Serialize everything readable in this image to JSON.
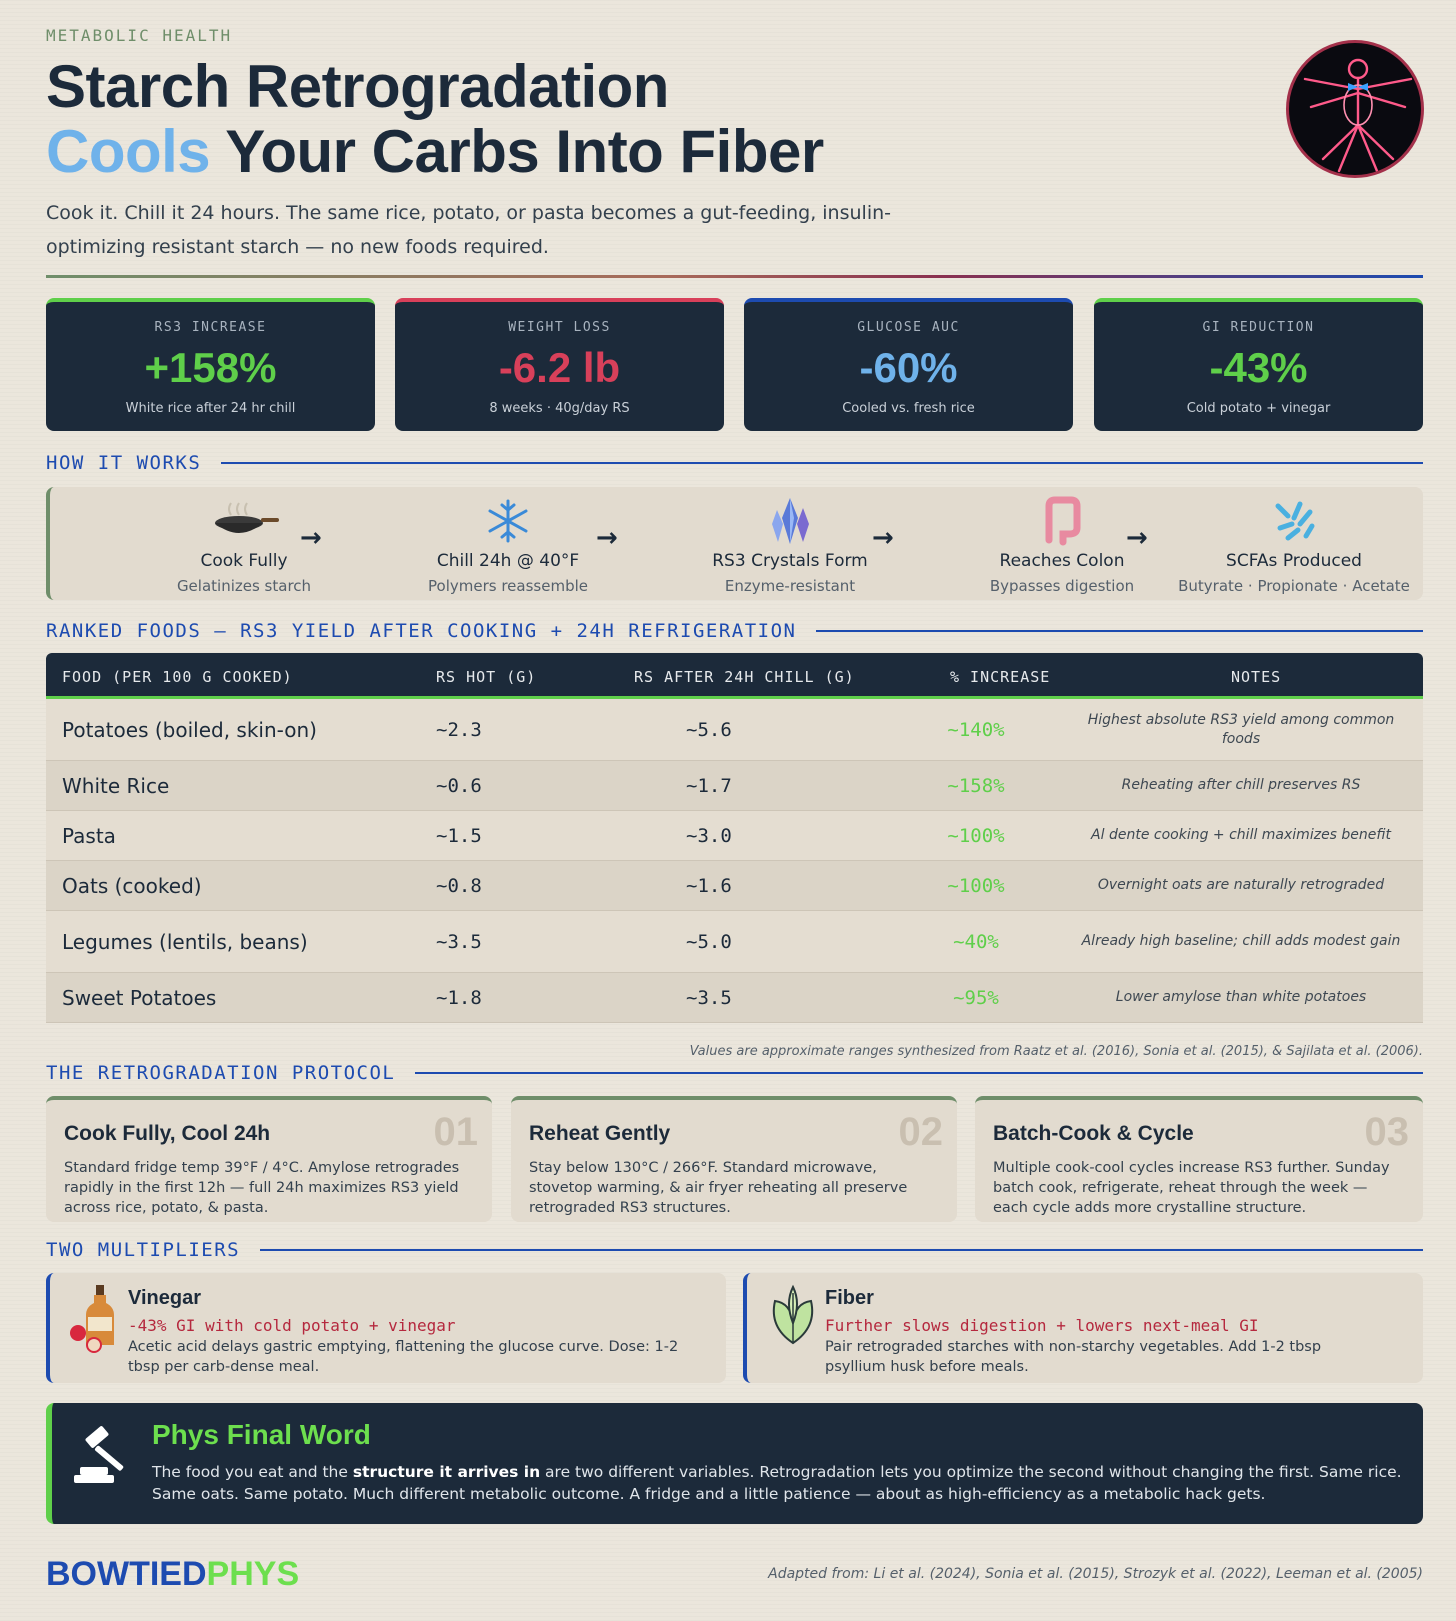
{
  "header": {
    "eyebrow": "METABOLIC HEALTH",
    "title_line1": "Starch Retrogradation",
    "title_accent": "Cools",
    "title_line2_rest": " Your Carbs Into Fiber",
    "lead": "Cook it. Chill it 24 hours. The same rice, potato, or pasta becomes a gut-feeding, insulin-optimizing resistant starch — no new foods required."
  },
  "stats": [
    {
      "label": "RS3 INCREASE",
      "value": "+158%",
      "sub": "White rice after 24 hr chill",
      "color": "#5fcf4a"
    },
    {
      "label": "WEIGHT LOSS",
      "value": "-6.2 lb",
      "sub": "8 weeks · 40g/day RS",
      "color": "#d8405a"
    },
    {
      "label": "GLUCOSE AUC",
      "value": "-60%",
      "sub": "Cooled vs. fresh rice",
      "color": "#6fb2ea"
    },
    {
      "label": "GI REDUCTION",
      "value": "-43%",
      "sub": "Cold potato + vinegar",
      "color": "#5fcf4a"
    }
  ],
  "how": {
    "heading": "HOW IT WORKS",
    "steps": [
      {
        "name": "Cook Fully",
        "desc": "Gelatinizes starch",
        "icon": "wok-icon"
      },
      {
        "name": "Chill 24h @ 40°F",
        "desc": "Polymers reassemble",
        "icon": "snowflake-icon"
      },
      {
        "name": "RS3 Crystals Form",
        "desc": "Enzyme-resistant",
        "icon": "crystal-icon"
      },
      {
        "name": "Reaches Colon",
        "desc": "Bypasses digestion",
        "icon": "colon-icon"
      },
      {
        "name": "SCFAs Produced",
        "desc": "Butyrate · Propionate · Acetate",
        "icon": "bacteria-icon"
      }
    ],
    "arrow": "→"
  },
  "ranked": {
    "heading": "RANKED FOODS — RS3 YIELD AFTER COOKING + 24H REFRIGERATION",
    "columns": [
      "FOOD (PER 100 G COOKED)",
      "RS HOT (G)",
      "RS AFTER 24H CHILL (G)",
      "% INCREASE",
      "NOTES"
    ],
    "rows": [
      {
        "food": "Potatoes (boiled, skin-on)",
        "hot": "~2.3",
        "chill": "~5.6",
        "increase": "~140%",
        "note": "Highest absolute RS3 yield among common foods"
      },
      {
        "food": "White Rice",
        "hot": "~0.6",
        "chill": "~1.7",
        "increase": "~158%",
        "note": "Reheating after chill preserves RS"
      },
      {
        "food": "Pasta",
        "hot": "~1.5",
        "chill": "~3.0",
        "increase": "~100%",
        "note": "Al dente cooking + chill maximizes benefit"
      },
      {
        "food": "Oats (cooked)",
        "hot": "~0.8",
        "chill": "~1.6",
        "increase": "~100%",
        "note": "Overnight oats are naturally retrograded"
      },
      {
        "food": "Legumes (lentils, beans)",
        "hot": "~3.5",
        "chill": "~5.0",
        "increase": "~40%",
        "note": "Already high baseline; chill adds modest gain"
      },
      {
        "food": "Sweet Potatoes",
        "hot": "~1.8",
        "chill": "~3.5",
        "increase": "~95%",
        "note": "Lower amylose than white potatoes"
      }
    ],
    "footnote": "Values are approximate ranges synthesized from Raatz et al. (2016), Sonia et al. (2015), & Sajilata et al. (2006)."
  },
  "protocol": {
    "heading": "THE RETROGRADATION PROTOCOL",
    "cards": [
      {
        "title": "Cook Fully, Cool 24h",
        "num": "01",
        "body": "Standard fridge temp 39°F / 4°C. Amylose retrogrades rapidly in the first 12h — full 24h maximizes RS3 yield across rice, potato, & pasta."
      },
      {
        "title": "Reheat Gently",
        "num": "02",
        "body": "Stay below 130°C / 266°F. Standard microwave, stovetop warming, & air fryer reheating all preserve retrograded RS3 structures."
      },
      {
        "title": "Batch-Cook & Cycle",
        "num": "03",
        "body": "Multiple cook-cool cycles increase RS3 further. Sunday batch cook, refrigerate, reheat through the week — each cycle adds more crystalline structure."
      }
    ]
  },
  "multipliers": {
    "heading": "TWO MULTIPLIERS",
    "items": [
      {
        "title": "Vinegar",
        "stat": "-43% GI with cold potato + vinegar",
        "body": "Acetic acid delays gastric emptying, flattening the glucose curve. Dose: 1-2 tbsp per carb-dense meal.",
        "icon": "vinegar-bottle-icon"
      },
      {
        "title": "Fiber",
        "stat": "Further slows digestion + lowers next-meal GI",
        "body": "Pair retrograded starches with non-starchy vegetables. Add 1-2 tbsp psyllium husk before meals.",
        "icon": "leaf-icon"
      }
    ]
  },
  "final": {
    "heading": "Phys Final Word",
    "body_pre": "The food you eat and the ",
    "body_bold": "structure it arrives in",
    "body_post": " are two different variables. Retrogradation lets you optimize the second without changing the first. Same rice. Same oats. Same potato. Much different metabolic outcome. A fridge and a little patience — about as high-efficiency as a metabolic hack gets."
  },
  "footer": {
    "brand_part1": "BOWTIED",
    "brand_part2": "PHYS",
    "adapted": "Adapted from: Li et al. (2024), Sonia et al. (2015), Strozyk et al. (2022), Leeman et al. (2005)"
  }
}
